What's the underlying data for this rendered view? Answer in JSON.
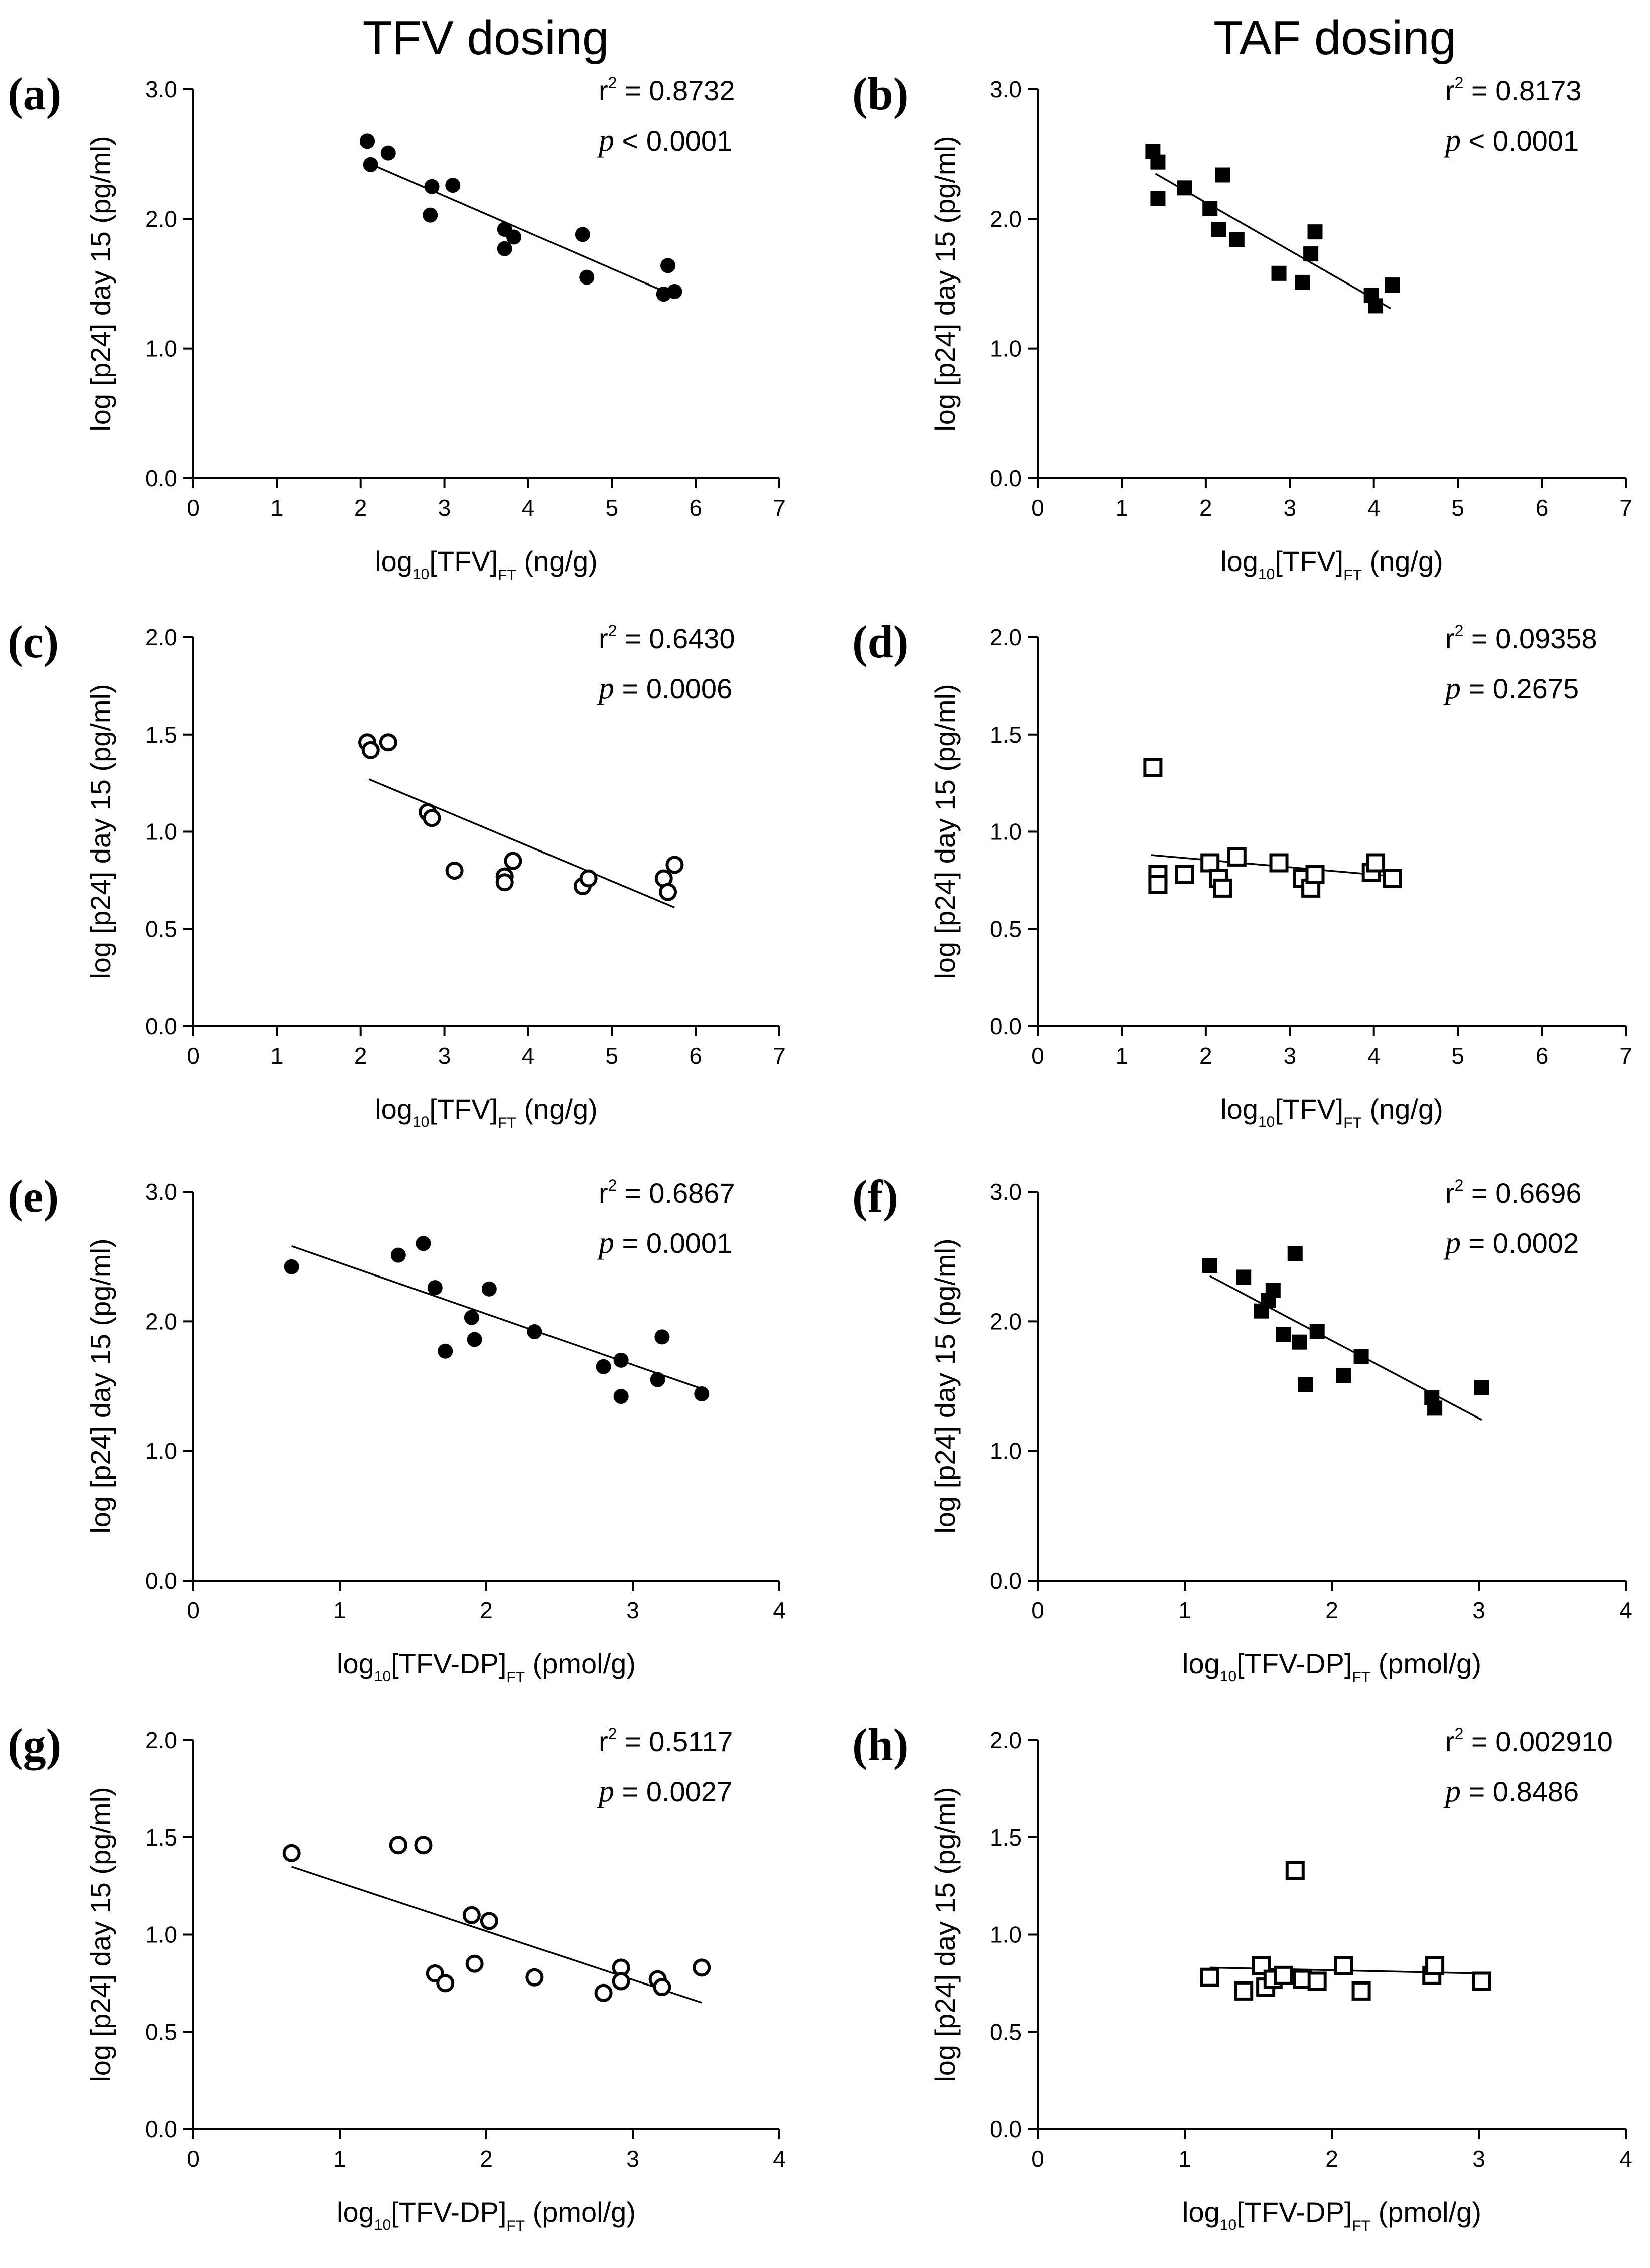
{
  "column_titles": [
    "TFV dosing",
    "TAF dosing"
  ],
  "chart_data": [
    {
      "panel": "(a)",
      "type": "scatter",
      "marker": "filled-circle",
      "xlabel": {
        "pre": "log",
        "sub1": "10",
        "main": "[TFV]",
        "sub2": "FT",
        "post": " (ng/g)"
      },
      "ylabel": "log [p24] day 15 (pg/ml)",
      "xlim": [
        0,
        7
      ],
      "ylim": [
        0,
        3
      ],
      "xticks": [
        "0",
        "1",
        "2",
        "3",
        "4",
        "5",
        "6",
        "7"
      ],
      "yticks": [
        "0.0",
        "1.0",
        "2.0",
        "3.0"
      ],
      "r2_label": "r",
      "r2_value": " = 0.8732",
      "p_label": "p",
      "p_value": " < 0.0001",
      "fit": {
        "x0": 2.1,
        "y0": 2.43,
        "x1": 5.7,
        "y1": 1.42
      },
      "x": [
        2.08,
        2.12,
        2.33,
        2.83,
        2.85,
        3.1,
        3.72,
        3.72,
        3.83,
        4.65,
        4.7,
        5.62,
        5.67,
        5.75
      ],
      "y": [
        2.6,
        2.42,
        2.51,
        2.03,
        2.25,
        2.26,
        1.92,
        1.77,
        1.86,
        1.88,
        1.55,
        1.42,
        1.64,
        1.44
      ]
    },
    {
      "panel": "(b)",
      "type": "scatter",
      "marker": "filled-square",
      "xlabel": {
        "pre": "log",
        "sub1": "10",
        "main": "[TFV]",
        "sub2": "FT",
        "post": " (ng/g)"
      },
      "ylabel": "log [p24] day 15 (pg/ml)",
      "xlim": [
        0,
        7
      ],
      "ylim": [
        0,
        3
      ],
      "xticks": [
        "0",
        "1",
        "2",
        "3",
        "4",
        "5",
        "6",
        "7"
      ],
      "yticks": [
        "0.0",
        "1.0",
        "2.0",
        "3.0"
      ],
      "r2_label": "r",
      "r2_value": " = 0.8173",
      "p_label": "p",
      "p_value": " < 0.0001",
      "fit": {
        "x0": 1.4,
        "y0": 2.35,
        "x1": 4.2,
        "y1": 1.31
      },
      "x": [
        1.37,
        1.43,
        1.43,
        1.75,
        2.05,
        2.15,
        2.2,
        2.37,
        2.87,
        3.15,
        3.25,
        3.3,
        3.97,
        4.02,
        4.22
      ],
      "y": [
        2.52,
        2.44,
        2.16,
        2.24,
        2.08,
        1.92,
        2.34,
        1.84,
        1.58,
        1.51,
        1.73,
        1.9,
        1.41,
        1.33,
        1.49
      ]
    },
    {
      "panel": "(c)",
      "type": "scatter",
      "marker": "open-circle",
      "xlabel": {
        "pre": "log",
        "sub1": "10",
        "main": "[TFV]",
        "sub2": "FT",
        "post": " (ng/g)"
      },
      "ylabel": "log [p24] day 15 (pg/ml)",
      "xlim": [
        0,
        7
      ],
      "ylim": [
        0,
        2
      ],
      "xticks": [
        "0",
        "1",
        "2",
        "3",
        "4",
        "5",
        "6",
        "7"
      ],
      "yticks": [
        "0.0",
        "0.5",
        "1.0",
        "1.5",
        "2.0"
      ],
      "r2_label": "r",
      "r2_value": " = 0.6430",
      "p_label": "p",
      "p_value": " = 0.0006",
      "fit": {
        "x0": 2.1,
        "y0": 1.27,
        "x1": 5.75,
        "y1": 0.61
      },
      "x": [
        2.08,
        2.12,
        2.33,
        2.8,
        2.85,
        3.12,
        3.72,
        3.72,
        3.82,
        4.65,
        4.72,
        5.62,
        5.67,
        5.75
      ],
      "y": [
        1.46,
        1.42,
        1.46,
        1.1,
        1.07,
        0.8,
        0.77,
        0.74,
        0.85,
        0.72,
        0.76,
        0.76,
        0.69,
        0.83
      ]
    },
    {
      "panel": "(d)",
      "type": "scatter",
      "marker": "open-square",
      "xlabel": {
        "pre": "log",
        "sub1": "10",
        "main": "[TFV]",
        "sub2": "FT",
        "post": " (ng/g)"
      },
      "ylabel": "log [p24] day 15 (pg/ml)",
      "xlim": [
        0,
        7
      ],
      "ylim": [
        0,
        2
      ],
      "xticks": [
        "0",
        "1",
        "2",
        "3",
        "4",
        "5",
        "6",
        "7"
      ],
      "yticks": [
        "0.0",
        "0.5",
        "1.0",
        "1.5",
        "2.0"
      ],
      "r2_label": "r",
      "r2_value": " = 0.09358",
      "p_label": "p",
      "p_value": " = 0.2675",
      "fit": {
        "x0": 1.35,
        "y0": 0.88,
        "x1": 4.25,
        "y1": 0.77
      },
      "x": [
        1.37,
        1.43,
        1.43,
        1.75,
        2.05,
        2.15,
        2.2,
        2.37,
        2.87,
        3.15,
        3.25,
        3.3,
        3.97,
        4.02,
        4.22
      ],
      "y": [
        1.33,
        0.78,
        0.73,
        0.78,
        0.84,
        0.76,
        0.71,
        0.87,
        0.84,
        0.76,
        0.71,
        0.78,
        0.79,
        0.84,
        0.76
      ]
    },
    {
      "panel": "(e)",
      "type": "scatter",
      "marker": "filled-circle",
      "xlabel": {
        "pre": "log",
        "sub1": "10",
        "main": "[TFV-DP]",
        "sub2": "FT",
        "post": " (pmol/g)"
      },
      "ylabel": "log [p24] day 15 (pg/ml)",
      "xlim": [
        0,
        4
      ],
      "ylim": [
        0,
        3
      ],
      "xticks": [
        "0",
        "1",
        "2",
        "3",
        "4"
      ],
      "yticks": [
        "0.0",
        "1.0",
        "2.0",
        "3.0"
      ],
      "r2_label": "r",
      "r2_value": " = 0.6867",
      "p_label": "p",
      "p_value": " = 0.0001",
      "fit": {
        "x0": 0.67,
        "y0": 2.58,
        "x1": 3.47,
        "y1": 1.48
      },
      "x": [
        0.67,
        1.4,
        1.57,
        1.65,
        1.72,
        1.9,
        1.92,
        2.02,
        2.33,
        2.8,
        2.92,
        2.92,
        3.17,
        3.2,
        3.47
      ],
      "y": [
        2.42,
        2.51,
        2.6,
        2.26,
        1.77,
        2.03,
        1.86,
        2.25,
        1.92,
        1.65,
        1.7,
        1.42,
        1.55,
        1.88,
        1.44
      ]
    },
    {
      "panel": "(f)",
      "type": "scatter",
      "marker": "filled-square",
      "xlabel": {
        "pre": "log",
        "sub1": "10",
        "main": "[TFV-DP]",
        "sub2": "FT",
        "post": " (pmol/g)"
      },
      "ylabel": "log [p24] day 15 (pg/ml)",
      "xlim": [
        0,
        4
      ],
      "ylim": [
        0,
        3
      ],
      "xticks": [
        "0",
        "1",
        "2",
        "3",
        "4"
      ],
      "yticks": [
        "0.0",
        "1.0",
        "2.0",
        "3.0"
      ],
      "r2_label": "r",
      "r2_value": " = 0.6696",
      "p_label": "p",
      "p_value": " = 0.0002",
      "fit": {
        "x0": 1.17,
        "y0": 2.35,
        "x1": 3.02,
        "y1": 1.24
      },
      "x": [
        1.17,
        1.4,
        1.52,
        1.57,
        1.6,
        1.67,
        1.75,
        1.78,
        1.82,
        1.9,
        2.08,
        2.2,
        2.68,
        2.7,
        3.02
      ],
      "y": [
        2.43,
        2.34,
        2.08,
        2.16,
        2.24,
        1.9,
        2.52,
        1.84,
        1.51,
        1.92,
        1.58,
        1.73,
        1.41,
        1.33,
        1.49
      ]
    },
    {
      "panel": "(g)",
      "type": "scatter",
      "marker": "open-circle",
      "xlabel": {
        "pre": "log",
        "sub1": "10",
        "main": "[TFV-DP]",
        "sub2": "FT",
        "post": " (pmol/g)"
      },
      "ylabel": "log [p24] day 15 (pg/ml)",
      "xlim": [
        0,
        4
      ],
      "ylim": [
        0,
        2
      ],
      "xticks": [
        "0",
        "1",
        "2",
        "3",
        "4"
      ],
      "yticks": [
        "0.0",
        "0.5",
        "1.0",
        "1.5",
        "2.0"
      ],
      "r2_label": "r",
      "r2_value": " = 0.5117",
      "p_label": "p",
      "p_value": " = 0.0027",
      "fit": {
        "x0": 0.67,
        "y0": 1.35,
        "x1": 3.47,
        "y1": 0.65
      },
      "x": [
        0.67,
        1.4,
        1.57,
        1.65,
        1.72,
        1.9,
        1.92,
        2.02,
        2.33,
        2.8,
        2.92,
        2.92,
        3.17,
        3.2,
        3.47
      ],
      "y": [
        1.42,
        1.46,
        1.46,
        0.8,
        0.75,
        1.1,
        0.85,
        1.07,
        0.78,
        0.7,
        0.83,
        0.76,
        0.77,
        0.73,
        0.83
      ]
    },
    {
      "panel": "(h)",
      "type": "scatter",
      "marker": "open-square",
      "xlabel": {
        "pre": "log",
        "sub1": "10",
        "main": "[TFV-DP]",
        "sub2": "FT",
        "post": " (pmol/g)"
      },
      "ylabel": "log [p24] day 15 (pg/ml)",
      "xlim": [
        0,
        4
      ],
      "ylim": [
        0,
        2
      ],
      "xticks": [
        "0",
        "1",
        "2",
        "3",
        "4"
      ],
      "yticks": [
        "0.0",
        "0.5",
        "1.0",
        "1.5",
        "2.0"
      ],
      "r2_label": "r",
      "r2_value": " = 0.002910",
      "p_label": "p",
      "p_value": " = 0.8486",
      "fit": {
        "x0": 1.17,
        "y0": 0.83,
        "x1": 3.02,
        "y1": 0.8
      },
      "x": [
        1.17,
        1.4,
        1.52,
        1.55,
        1.6,
        1.67,
        1.75,
        1.8,
        1.9,
        2.08,
        2.2,
        2.68,
        2.7,
        3.02
      ],
      "y": [
        0.78,
        0.71,
        0.84,
        0.73,
        0.77,
        0.79,
        1.33,
        0.77,
        0.76,
        0.84,
        0.71,
        0.79,
        0.84,
        0.76
      ]
    }
  ]
}
